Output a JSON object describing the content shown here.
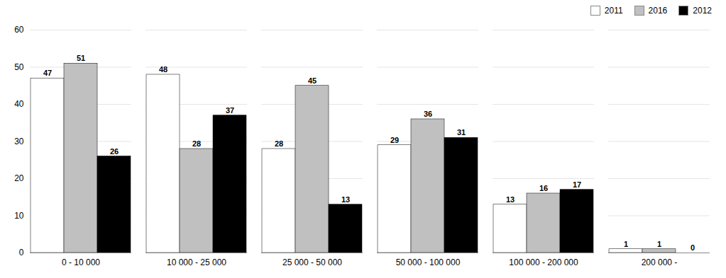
{
  "chart_data": {
    "type": "bar",
    "categories": [
      "0 - 10 000",
      "10 000 - 25 000",
      "25 000 - 50 000",
      "50 000 - 100 000",
      "100 000 - 200 000",
      "200 000 -"
    ],
    "series": [
      {
        "name": "2011",
        "color": "#ffffff",
        "values": [
          47,
          48,
          28,
          29,
          13,
          1
        ]
      },
      {
        "name": "2016",
        "color": "#c0c0c0",
        "values": [
          51,
          28,
          45,
          36,
          16,
          1
        ]
      },
      {
        "name": "2012",
        "color": "#000000",
        "values": [
          26,
          37,
          13,
          31,
          17,
          0
        ]
      }
    ],
    "ylim": [
      0,
      60
    ],
    "yticks": [
      0,
      10,
      20,
      30,
      40,
      50,
      60
    ],
    "grid": true,
    "legend": "upper right",
    "data_labels": true
  }
}
